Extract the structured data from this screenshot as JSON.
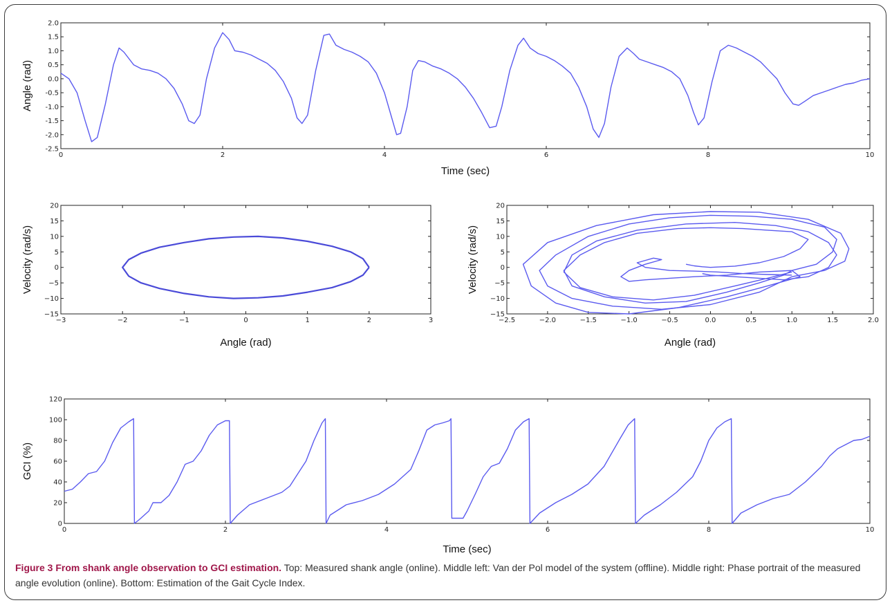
{
  "chart_data": [
    {
      "id": "top",
      "type": "line",
      "xlabel": "Time (sec)",
      "ylabel": "Angle (rad)",
      "xlim": [
        0,
        10
      ],
      "ylim": [
        -2.5,
        2.0
      ],
      "xticks": [
        0,
        2,
        4,
        6,
        8,
        10
      ],
      "yticks": [
        -2.5,
        -2.0,
        -1.5,
        -1.0,
        -0.5,
        0.0,
        0.5,
        1.0,
        1.5,
        2.0
      ],
      "ytick_labels": [
        "-2.5",
        "-2.0",
        "-1.5",
        "-1.0",
        "-0.5",
        "0.0",
        "0.5",
        "1.0",
        "1.5",
        "2.0"
      ],
      "line_color": "#5a5aef",
      "series": [
        {
          "x": [
            0,
            0.1,
            0.2,
            0.3,
            0.38,
            0.45,
            0.55,
            0.65,
            0.72,
            0.78,
            0.9,
            1.0,
            1.1,
            1.2,
            1.3,
            1.4,
            1.5,
            1.58,
            1.65,
            1.72,
            1.8,
            1.9,
            2.0,
            2.08,
            2.15,
            2.25,
            2.35,
            2.45,
            2.55,
            2.65,
            2.75,
            2.85,
            2.92,
            2.98,
            3.05,
            3.15,
            3.25,
            3.32,
            3.4,
            3.5,
            3.6,
            3.7,
            3.8,
            3.9,
            4.0,
            4.08,
            4.15,
            4.2,
            4.28,
            4.35,
            4.42,
            4.5,
            4.6,
            4.7,
            4.8,
            4.9,
            5.0,
            5.1,
            5.2,
            5.3,
            5.38,
            5.45,
            5.55,
            5.65,
            5.72,
            5.8,
            5.9,
            6.0,
            6.1,
            6.2,
            6.3,
            6.4,
            6.5,
            6.58,
            6.65,
            6.72,
            6.8,
            6.9,
            7.0,
            7.08,
            7.15,
            7.25,
            7.35,
            7.45,
            7.55,
            7.65,
            7.75,
            7.82,
            7.88,
            7.95,
            8.05,
            8.15,
            8.25,
            8.35,
            8.45,
            8.55,
            8.65,
            8.75,
            8.85,
            8.95,
            9.05,
            9.12,
            9.2,
            9.3,
            9.4,
            9.5,
            9.6,
            9.7,
            9.8,
            9.9,
            10.0
          ],
          "y": [
            0.2,
            0.0,
            -0.5,
            -1.5,
            -2.25,
            -2.1,
            -0.9,
            0.5,
            1.1,
            0.95,
            0.5,
            0.35,
            0.3,
            0.2,
            0.0,
            -0.35,
            -0.9,
            -1.5,
            -1.6,
            -1.3,
            0.0,
            1.1,
            1.65,
            1.4,
            1.0,
            0.95,
            0.85,
            0.7,
            0.55,
            0.3,
            -0.1,
            -0.7,
            -1.4,
            -1.6,
            -1.3,
            0.3,
            1.55,
            1.6,
            1.2,
            1.05,
            0.95,
            0.8,
            0.6,
            0.2,
            -0.5,
            -1.3,
            -2.0,
            -1.95,
            -1.0,
            0.3,
            0.65,
            0.6,
            0.45,
            0.35,
            0.2,
            0.0,
            -0.3,
            -0.7,
            -1.2,
            -1.75,
            -1.7,
            -1.0,
            0.3,
            1.2,
            1.45,
            1.1,
            0.9,
            0.8,
            0.65,
            0.45,
            0.2,
            -0.3,
            -1.0,
            -1.8,
            -2.1,
            -1.6,
            -0.3,
            0.8,
            1.1,
            0.9,
            0.7,
            0.6,
            0.5,
            0.4,
            0.25,
            0.0,
            -0.6,
            -1.2,
            -1.65,
            -1.4,
            -0.1,
            1.0,
            1.2,
            1.1,
            0.95,
            0.8,
            0.6,
            0.3,
            0.0,
            -0.5,
            -0.9,
            -0.95,
            -0.8,
            -0.6,
            -0.5,
            -0.4,
            -0.3,
            -0.2,
            -0.15,
            -0.05,
            0.0
          ]
        }
      ]
    },
    {
      "id": "mid-left",
      "type": "line",
      "xlabel": "Angle (rad)",
      "ylabel": "Velocity (rad/s)",
      "xlim": [
        -3,
        3
      ],
      "ylim": [
        -15,
        20
      ],
      "xticks": [
        -3,
        -2,
        -1,
        0,
        1,
        2,
        3
      ],
      "xtick_labels": [
        "−3",
        "−2",
        "−1",
        "0",
        "1",
        "2",
        "3"
      ],
      "yticks": [
        -15,
        -10,
        -5,
        0,
        5,
        10,
        15,
        20
      ],
      "ytick_labels": [
        "−15",
        "−10",
        "−5",
        "0",
        "5",
        "10",
        "15",
        "20"
      ],
      "line_color": "#4a4ad8",
      "series": [
        {
          "x": [
            2.0,
            1.9,
            1.7,
            1.4,
            1.0,
            0.6,
            0.2,
            -0.2,
            -0.6,
            -1.0,
            -1.4,
            -1.7,
            -1.9,
            -2.0,
            -1.9,
            -1.7,
            -1.4,
            -1.0,
            -0.6,
            -0.2,
            0.2,
            0.6,
            1.0,
            1.4,
            1.7,
            1.9,
            2.0
          ],
          "y": [
            0.0,
            2.8,
            5.0,
            6.8,
            8.4,
            9.5,
            10.0,
            9.8,
            9.2,
            8.0,
            6.5,
            4.6,
            2.5,
            0.0,
            -2.8,
            -5.0,
            -6.8,
            -8.4,
            -9.5,
            -10.0,
            -9.8,
            -9.2,
            -8.0,
            -6.5,
            -4.6,
            -2.5,
            0.0
          ]
        }
      ]
    },
    {
      "id": "mid-right",
      "type": "line",
      "xlabel": "Angle (rad)",
      "ylabel": "Velocity (rad/s)",
      "xlim": [
        -2.5,
        2.0
      ],
      "ylim": [
        -15,
        20
      ],
      "xticks": [
        -2.5,
        -2.0,
        -1.5,
        -1.0,
        -0.5,
        0.0,
        0.5,
        1.0,
        1.5,
        2.0
      ],
      "xtick_labels": [
        "−2.5",
        "−2.0",
        "−1.5",
        "−1.0",
        "−0.5",
        "0.0",
        "0.5",
        "1.0",
        "1.5",
        "2.0"
      ],
      "yticks": [
        -15,
        -10,
        -5,
        0,
        5,
        10,
        15,
        20
      ],
      "ytick_labels": [
        "−15",
        "−10",
        "−5",
        "0",
        "5",
        "10",
        "15",
        "20"
      ],
      "line_color": "#5a5aef",
      "series": [
        {
          "x": [
            -0.3,
            -0.2,
            -0.1,
            0.0,
            0.3,
            0.6,
            0.9,
            1.1,
            1.2,
            1.0,
            0.7,
            0.4,
            0.0,
            -0.4,
            -0.9,
            -1.3,
            -1.6,
            -1.8,
            -1.7,
            -1.3,
            -0.8,
            -0.3,
            0.2,
            0.6,
            0.9,
            1.0
          ],
          "y": [
            1.0,
            0.5,
            0.2,
            0.0,
            0.4,
            1.5,
            3.5,
            6.0,
            9.0,
            11.5,
            12.0,
            12.5,
            12.8,
            12.5,
            11.0,
            8.0,
            4.0,
            -1.0,
            -6.0,
            -9.5,
            -11.5,
            -11.0,
            -8.0,
            -5.0,
            -2.5,
            -1.0
          ]
        },
        {
          "x": [
            1.0,
            1.3,
            1.5,
            1.55,
            1.4,
            1.0,
            0.5,
            0.0,
            -0.5,
            -1.0,
            -1.5,
            -1.9,
            -2.1,
            -2.0,
            -1.7,
            -1.2,
            -0.6,
            0.0,
            0.6,
            1.0
          ],
          "y": [
            -1.0,
            1.0,
            5.0,
            9.0,
            13.0,
            15.5,
            16.5,
            16.8,
            16.0,
            14.0,
            10.0,
            4.0,
            -1.0,
            -6.0,
            -10.0,
            -12.5,
            -13.5,
            -12.0,
            -8.0,
            -3.0
          ]
        },
        {
          "x": [
            1.0,
            1.4,
            1.65,
            1.7,
            1.6,
            1.2,
            0.6,
            0.0,
            -0.7,
            -1.4,
            -2.0,
            -2.3,
            -2.2,
            -1.9,
            -1.5,
            -1.0,
            -0.4,
            0.2,
            0.7,
            1.1,
            1.0
          ],
          "y": [
            -3.0,
            -1.0,
            2.0,
            6.0,
            11.0,
            15.5,
            17.8,
            18.0,
            17.0,
            13.5,
            8.0,
            1.0,
            -6.0,
            -11.5,
            -14.5,
            -15.0,
            -13.0,
            -9.5,
            -6.0,
            -3.0,
            -1.0
          ]
        },
        {
          "x": [
            1.0,
            0.6,
            0.2,
            -0.2,
            -0.5,
            -0.8,
            -1.0,
            -1.1,
            -1.0,
            -0.8,
            -0.6,
            -0.7,
            -0.9,
            -0.8,
            -0.5,
            -0.2,
            0.1,
            0.4,
            0.7,
            1.0
          ],
          "y": [
            -1.0,
            -1.5,
            -2.5,
            -3.0,
            -3.5,
            -4.0,
            -4.5,
            -3.0,
            -1.0,
            1.0,
            2.5,
            3.0,
            1.5,
            0.0,
            -1.0,
            -1.2,
            -1.5,
            -2.0,
            -2.3,
            -2.5
          ]
        },
        {
          "x": [
            -0.1,
            0.0,
            0.3,
            0.6,
            0.9,
            1.2,
            1.45,
            1.55,
            1.45,
            1.2,
            0.8,
            0.3,
            -0.3,
            -0.9,
            -1.4,
            -1.7,
            -1.8,
            -1.6,
            -1.2,
            -0.7,
            -0.2,
            0.3,
            0.7,
            1.0
          ],
          "y": [
            -2.0,
            -2.5,
            -3.0,
            -3.5,
            -4.0,
            -3.0,
            0.0,
            4.0,
            8.0,
            11.5,
            13.5,
            14.5,
            14.0,
            12.0,
            8.5,
            4.0,
            -1.5,
            -6.5,
            -9.5,
            -10.5,
            -9.0,
            -6.0,
            -3.5,
            -1.5
          ]
        }
      ]
    },
    {
      "id": "bottom",
      "type": "line",
      "xlabel": "Time (sec)",
      "ylabel": "GCI (%)",
      "xlim": [
        0,
        10
      ],
      "ylim": [
        0,
        120
      ],
      "xticks": [
        0,
        2,
        4,
        6,
        8,
        10
      ],
      "yticks": [
        0,
        20,
        40,
        60,
        80,
        100,
        120
      ],
      "line_color": "#5a5aef",
      "series": [
        {
          "x": [
            0,
            0.1,
            0.2,
            0.3,
            0.4,
            0.5,
            0.6,
            0.7,
            0.8,
            0.86,
            0.87,
            0.92,
            0.95,
            1.05,
            1.1,
            1.2,
            1.3,
            1.4,
            1.5,
            1.6,
            1.7,
            1.8,
            1.9,
            2.0,
            2.05,
            2.06,
            2.15,
            2.3,
            2.5,
            2.7,
            2.8,
            2.9,
            3.0,
            3.1,
            3.2,
            3.24,
            3.25,
            3.3,
            3.5,
            3.7,
            3.9,
            4.1,
            4.3,
            4.4,
            4.5,
            4.6,
            4.7,
            4.78,
            4.8,
            4.81,
            4.95,
            5.0,
            5.1,
            5.2,
            5.3,
            5.4,
            5.5,
            5.6,
            5.7,
            5.77,
            5.78,
            5.9,
            6.1,
            6.3,
            6.5,
            6.7,
            6.9,
            7.0,
            7.08,
            7.09,
            7.2,
            7.4,
            7.6,
            7.8,
            7.9,
            8.0,
            8.1,
            8.2,
            8.28,
            8.29,
            8.4,
            8.6,
            8.8,
            9.0,
            9.2,
            9.4,
            9.5,
            9.6,
            9.7,
            9.8,
            9.9,
            10.0
          ],
          "y": [
            31,
            33,
            40,
            48,
            50,
            60,
            78,
            92,
            98,
            101,
            0,
            3,
            5,
            12,
            20,
            20,
            27,
            40,
            57,
            60,
            70,
            85,
            95,
            99,
            99,
            0,
            8,
            18,
            24,
            30,
            36,
            48,
            60,
            80,
            97,
            101,
            0,
            8,
            18,
            22,
            28,
            38,
            52,
            70,
            90,
            95,
            97,
            99,
            101,
            5,
            5,
            12,
            28,
            45,
            55,
            58,
            72,
            90,
            98,
            101,
            0,
            10,
            20,
            28,
            38,
            55,
            82,
            95,
            101,
            0,
            8,
            18,
            30,
            45,
            60,
            80,
            92,
            98,
            101,
            0,
            10,
            18,
            24,
            28,
            40,
            55,
            65,
            72,
            76,
            80,
            81,
            84
          ]
        }
      ]
    }
  ],
  "caption": {
    "title": "Figure 3 From shank angle observation to GCI estimation.",
    "body": " Top: Measured shank angle (online). Middle left: Van der Pol model of the system (offline). Middle right: Phase portrait of the measured angle evolution (online). Bottom: Estimation of the Gait Cycle Index."
  }
}
